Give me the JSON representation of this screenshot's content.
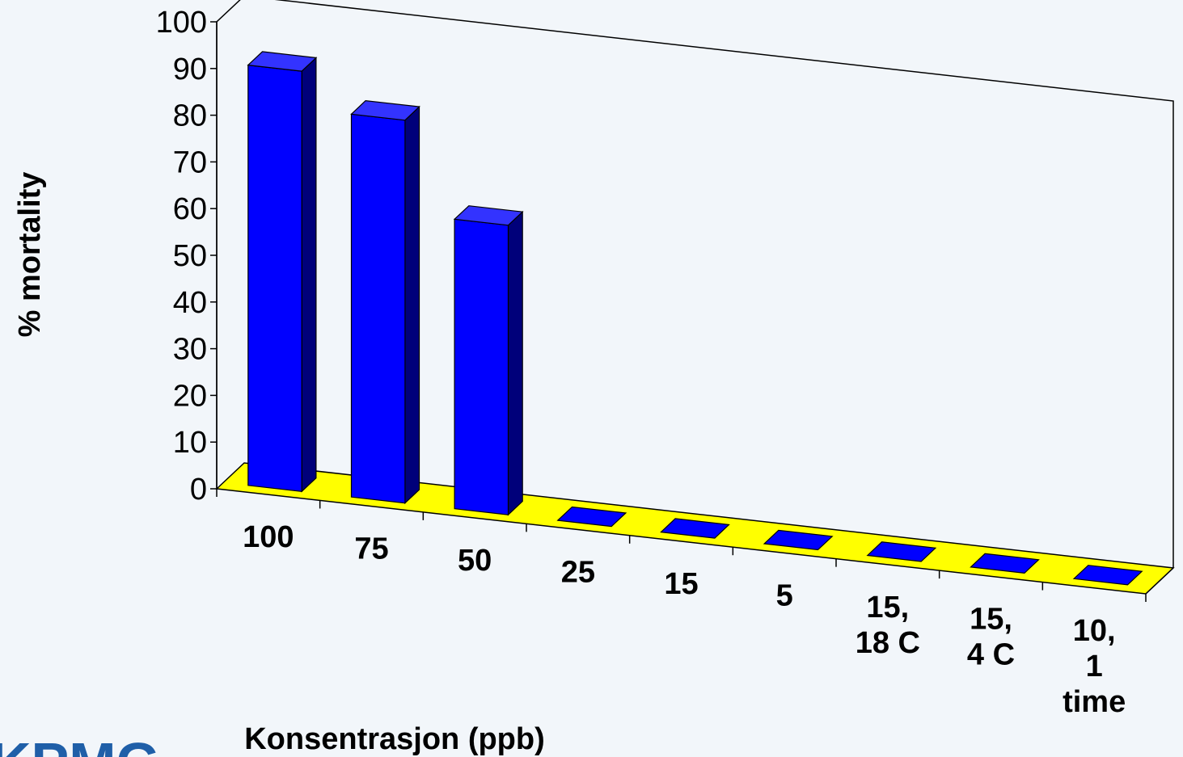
{
  "chart_data": {
    "type": "bar",
    "three_d": true,
    "categories": [
      "100",
      "75",
      "50",
      "25",
      "15",
      "5",
      "15,\n18 C",
      "15,\n4 C",
      "10,\n1\ntime"
    ],
    "values": [
      90,
      82,
      62,
      0,
      0,
      0,
      0,
      0,
      0
    ],
    "xlabel": "Konsentrasjon (ppb)",
    "ylabel": "% mortality",
    "ylim": [
      0,
      100
    ],
    "yticks": [
      0,
      10,
      20,
      30,
      40,
      50,
      60,
      70,
      80,
      90,
      100
    ],
    "grid": false,
    "legend": "none",
    "colors": {
      "bar_front": "#0000ff",
      "bar_side": "#00007a",
      "bar_top": "#3333ff",
      "floor": "#ffff00",
      "background": "#f2f6fa",
      "brand": "#1f5fa8"
    }
  },
  "brand": {
    "text": "KPMG"
  }
}
